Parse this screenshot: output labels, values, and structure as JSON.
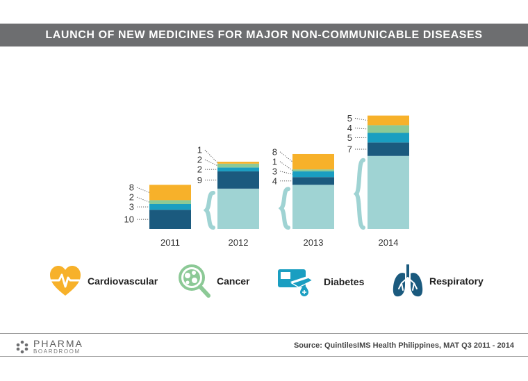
{
  "title": "LAUNCH OF NEW MEDICINES FOR MAJOR NON-COMMUNICABLE DISEASES",
  "chart_data": {
    "type": "bar",
    "stacked": true,
    "categories": [
      "2011",
      "2012",
      "2013",
      "2014"
    ],
    "series": [
      {
        "name": "Respiratory",
        "color": "#1b5a7e",
        "values": [
          10,
          9,
          4,
          7
        ]
      },
      {
        "name": "Diabetes",
        "color": "#1a9ec1",
        "values": [
          3,
          2,
          3,
          5
        ]
      },
      {
        "name": "Cancer",
        "color": "#8cc996",
        "values": [
          2,
          2,
          1,
          4
        ]
      },
      {
        "name": "Cardiovascular",
        "color": "#f7b12a",
        "values": [
          8,
          1,
          8,
          5
        ]
      }
    ],
    "base_color": "#9fd3d3",
    "base_values": [
      0,
      21,
      23,
      38
    ],
    "grid": false,
    "legend_position": "bottom"
  },
  "legend": [
    {
      "label": "Cardiovascular",
      "icon": "heart-pulse-icon",
      "color": "#f7b12a"
    },
    {
      "label": "Cancer",
      "icon": "cell-magnifier-icon",
      "color": "#8cc996"
    },
    {
      "label": "Diabetes",
      "icon": "glucose-meter-icon",
      "color": "#1a9ec1"
    },
    {
      "label": "Respiratory",
      "icon": "lungs-icon",
      "color": "#1b5a7e"
    }
  ],
  "footer": {
    "logo_main": "PHARMA",
    "logo_sub": "BOARDROOM",
    "source": "Source: QuintilesIMS Health Philippines, MAT Q3 2011 - 2014"
  }
}
